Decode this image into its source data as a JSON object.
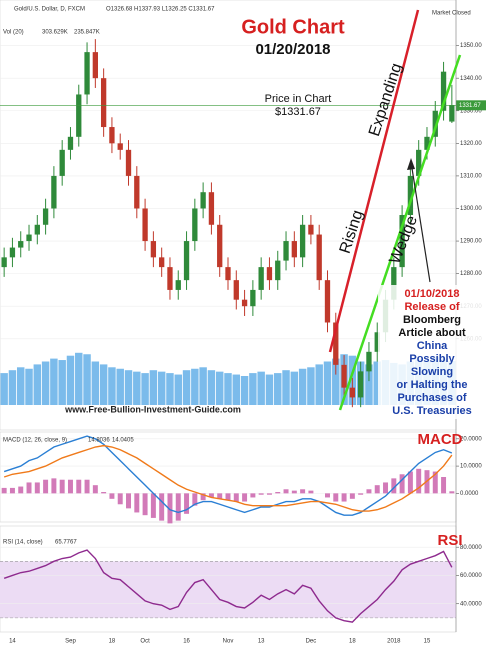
{
  "chart_data": [
    {
      "type": "candlestick",
      "title": "Gold Chart",
      "subtitle": "01/20/2018",
      "symbol": "Gold/U.S. Dollar, D, FXCM",
      "ohlc_label": "O1326.68 H1337.93 L1326.25 C1331.67",
      "status": "Market Closed",
      "categories": [
        null,
        "14",
        null,
        null,
        null,
        null,
        null,
        null,
        "Sep",
        null,
        null,
        null,
        null,
        "18",
        null,
        null,
        null,
        "Oct",
        null,
        null,
        null,
        null,
        "16",
        null,
        null,
        null,
        null,
        "Nov",
        null,
        null,
        null,
        "13",
        null,
        null,
        null,
        null,
        null,
        "Dec",
        null,
        null,
        null,
        null,
        "18",
        null,
        null,
        null,
        null,
        "2018",
        null,
        null,
        null,
        "15",
        null,
        null,
        null
      ],
      "open": [
        1282,
        1285,
        1288,
        1290,
        1292,
        1295,
        1300,
        1310,
        1318,
        1322,
        1335,
        1348,
        1340,
        1325,
        1320,
        1318,
        1310,
        1300,
        1290,
        1285,
        1282,
        1275,
        1278,
        1290,
        1300,
        1305,
        1295,
        1282,
        1278,
        1272,
        1270,
        1275,
        1282,
        1278,
        1284,
        1290,
        1285,
        1295,
        1292,
        1278,
        1265,
        1252,
        1245,
        1242,
        1250,
        1256,
        1262,
        1272,
        1282,
        1298,
        1310,
        1318,
        1322,
        1330,
        1326.68
      ],
      "high": [
        1288,
        1291,
        1293,
        1295,
        1298,
        1303,
        1313,
        1321,
        1325,
        1338,
        1351,
        1352,
        1343,
        1328,
        1323,
        1321,
        1313,
        1303,
        1293,
        1288,
        1285,
        1281,
        1293,
        1303,
        1308,
        1308,
        1298,
        1285,
        1281,
        1275,
        1278,
        1285,
        1285,
        1287,
        1293,
        1293,
        1298,
        1298,
        1295,
        1281,
        1268,
        1255,
        1248,
        1253,
        1259,
        1265,
        1275,
        1285,
        1301,
        1313,
        1321,
        1325,
        1333,
        1345,
        1337.93
      ],
      "low": [
        1279,
        1282,
        1285,
        1287,
        1289,
        1292,
        1297,
        1307,
        1315,
        1319,
        1332,
        1337,
        1322,
        1317,
        1315,
        1307,
        1297,
        1287,
        1282,
        1279,
        1272,
        1272,
        1275,
        1287,
        1297,
        1292,
        1279,
        1275,
        1269,
        1267,
        1267,
        1272,
        1275,
        1275,
        1281,
        1282,
        1282,
        1289,
        1275,
        1262,
        1249,
        1242,
        1239,
        1239,
        1247,
        1253,
        1259,
        1269,
        1279,
        1295,
        1307,
        1315,
        1319,
        1327,
        1326.25
      ],
      "close": [
        1285,
        1288,
        1290,
        1292,
        1295,
        1300,
        1310,
        1318,
        1322,
        1335,
        1348,
        1340,
        1325,
        1320,
        1318,
        1310,
        1300,
        1290,
        1285,
        1282,
        1275,
        1278,
        1290,
        1300,
        1305,
        1295,
        1282,
        1278,
        1272,
        1270,
        1275,
        1282,
        1278,
        1284,
        1290,
        1285,
        1295,
        1292,
        1278,
        1265,
        1252,
        1245,
        1242,
        1250,
        1256,
        1262,
        1272,
        1282,
        1298,
        1310,
        1318,
        1322,
        1330,
        1342,
        1331.67
      ],
      "up_color": "#2f8a3a",
      "down_color": "#c0392b",
      "ylim": [
        1232,
        1364
      ],
      "yticks": [
        {
          "value": 1260,
          "label": "1260.00"
        },
        {
          "value": 1270,
          "label": "1270.00"
        },
        {
          "value": 1280,
          "label": "1280.00"
        },
        {
          "value": 1290,
          "label": "1290.00"
        },
        {
          "value": 1300,
          "label": "1300.00"
        },
        {
          "value": 1310,
          "label": "1310.00"
        },
        {
          "value": 1320,
          "label": "1320.00"
        },
        {
          "value": 1330,
          "label": "1330.00"
        },
        {
          "value": 1340,
          "label": "1340.00"
        },
        {
          "value": 1350,
          "label": "1350.00"
        }
      ],
      "last_price": {
        "value": 1331.67,
        "label": "1331.67"
      },
      "last_price_color": "#3a9a3a",
      "volume": {
        "name": "Vol (20)",
        "legend_values": [
          "303.629K",
          "235.847K"
        ],
        "color": "#5aaae6",
        "ylim": [
          0,
          1000
        ],
        "values": [
          220,
          240,
          260,
          250,
          280,
          300,
          320,
          310,
          340,
          360,
          350,
          300,
          280,
          260,
          250,
          240,
          230,
          220,
          240,
          230,
          220,
          210,
          240,
          250,
          260,
          240,
          230,
          220,
          210,
          200,
          220,
          230,
          210,
          220,
          240,
          230,
          250,
          260,
          280,
          300,
          320,
          350,
          340,
          300,
          280,
          300,
          310,
          290,
          280,
          300,
          320,
          310,
          330,
          320,
          303.629
        ]
      },
      "annotations": {
        "price_title": "Price in Chart",
        "price_value": "$1331.67",
        "expanding": "Expanding",
        "rising": "Rising",
        "wedge": "Wedge",
        "event_date": "01/10/2018",
        "event_lines": [
          "Release of",
          "Bloomberg",
          "Article about",
          "China",
          "Possibly",
          "Slowing",
          "or Halting the",
          "Purchases of",
          "U.S. Treasuries"
        ],
        "website": "www.Free-Bullion-Investment-Guide.com"
      }
    },
    {
      "type": "macd",
      "title": "MACD",
      "legend": "MACD (12, 26, close, 9)",
      "legend_values": [
        "14.8036",
        "14.0405"
      ],
      "series": [
        {
          "name": "MACD",
          "color": "#2a7fd4",
          "values": [
            8,
            9,
            10,
            12,
            13,
            15,
            17,
            18,
            19,
            20,
            21,
            20,
            18,
            15,
            12,
            9,
            6,
            3,
            0,
            -3,
            -6,
            -7,
            -6,
            -4,
            -3,
            -3,
            -4,
            -5,
            -6,
            -7,
            -6,
            -5,
            -5,
            -4,
            -3,
            -3,
            -2,
            -2,
            -3,
            -5,
            -7,
            -8,
            -8,
            -7,
            -5,
            -3,
            -1,
            2,
            5,
            8,
            11,
            13,
            15,
            16,
            14.8036
          ]
        },
        {
          "name": "Signal",
          "color": "#f07a1a",
          "values": [
            6,
            7,
            7.5,
            8,
            9,
            10,
            11.5,
            13,
            14,
            15,
            16,
            17,
            17.5,
            17,
            16,
            14.5,
            13,
            11,
            9,
            7,
            5,
            3,
            1.5,
            0.5,
            -0.5,
            -1.5,
            -2,
            -2.5,
            -3,
            -4,
            -4.5,
            -4.5,
            -4.5,
            -4.5,
            -4.5,
            -4,
            -3.5,
            -3,
            -3,
            -3.5,
            -4,
            -5,
            -6,
            -6.5,
            -6.5,
            -6,
            -5,
            -3.5,
            -2,
            0,
            2,
            4.5,
            7,
            10,
            14.0405
          ]
        }
      ],
      "histogram": {
        "color": "#d27ab8",
        "values": [
          2,
          2,
          2.5,
          4,
          4,
          5,
          5.5,
          5,
          5,
          5,
          5,
          3,
          0.5,
          -2,
          -4,
          -5.5,
          -7,
          -8,
          -9,
          -10,
          -11,
          -10,
          -7.5,
          -4.5,
          -2.5,
          -1.5,
          -2,
          -2.5,
          -3,
          -3,
          -1.5,
          -0.5,
          -0.5,
          0.5,
          1.5,
          1,
          1.5,
          1,
          0,
          -1.5,
          -3,
          -3,
          -2,
          -0.5,
          1.5,
          3,
          4,
          5.5,
          7,
          8,
          9,
          8.5,
          8,
          6,
          0.7631
        ]
      },
      "ylim": [
        -10.5,
        22.5
      ],
      "yticks": [
        {
          "value": 0,
          "label": "0.0000"
        },
        {
          "value": 10,
          "label": "10.0000"
        },
        {
          "value": 20,
          "label": "20.0000"
        }
      ]
    },
    {
      "type": "rsi",
      "title": "RSI",
      "legend": "RSI (14, close)",
      "legend_value": "65.7767",
      "series": [
        {
          "name": "RSI",
          "color": "#8e2a8e",
          "values": [
            58,
            60,
            62,
            63,
            65,
            67,
            70,
            72,
            73,
            76,
            78,
            72,
            62,
            58,
            57,
            52,
            47,
            42,
            40,
            39,
            36,
            38,
            48,
            55,
            57,
            50,
            43,
            41,
            38,
            37,
            41,
            46,
            43,
            47,
            50,
            47,
            53,
            51,
            42,
            35,
            30,
            28,
            27,
            33,
            38,
            43,
            50,
            56,
            64,
            68,
            70,
            72,
            74,
            77,
            65.7767
          ]
        }
      ],
      "band": [
        30,
        70
      ],
      "band_color": "#ecdcf4",
      "ylim": [
        20,
        95
      ],
      "yticks": [
        {
          "value": 40,
          "label": "40.0000"
        },
        {
          "value": 60,
          "label": "60.0000"
        },
        {
          "value": 80,
          "label": "80.0000"
        }
      ]
    }
  ]
}
